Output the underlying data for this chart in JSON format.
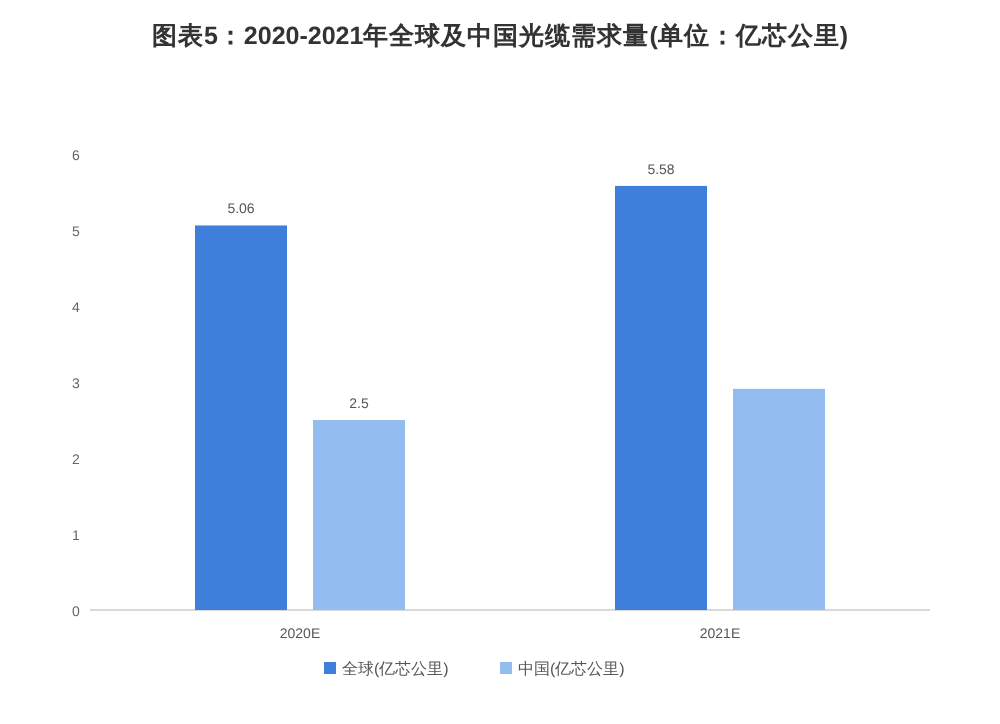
{
  "chart_data": {
    "type": "bar",
    "title": "图表5：2020-2021年全球及中国光缆需求量(单位：亿芯公里)",
    "categories": [
      "2020E",
      "2021E"
    ],
    "series": [
      {
        "name": "全球(亿芯公里)",
        "color": "#3f7fdc",
        "values": [
          5.06,
          5.58
        ],
        "value_labels": [
          "5.06",
          "5.58"
        ]
      },
      {
        "name": "中国(亿芯公里)",
        "color": "#93bdf0",
        "values": [
          2.5,
          2.91
        ],
        "value_labels": [
          "2.5",
          null
        ]
      }
    ],
    "ylim": [
      0,
      6
    ],
    "yticks": [
      0,
      1,
      2,
      3,
      4,
      5,
      6
    ],
    "grid": false,
    "legend": "bottom"
  }
}
